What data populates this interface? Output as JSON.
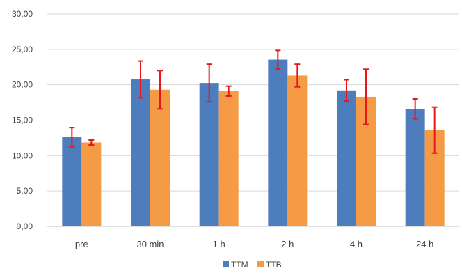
{
  "chart_data": {
    "type": "bar",
    "categories": [
      "pre",
      "30 min",
      "1 h",
      "2 h",
      "4 h",
      "24 h"
    ],
    "series": [
      {
        "name": "TTM",
        "color": "#4E7DBE",
        "values": [
          12.6,
          20.75,
          20.25,
          23.55,
          19.2,
          16.6
        ],
        "errors": [
          1.35,
          2.6,
          2.65,
          1.3,
          1.5,
          1.4
        ]
      },
      {
        "name": "TTB",
        "color": "#F59A45",
        "values": [
          11.85,
          19.3,
          19.1,
          21.3,
          18.3,
          13.6
        ],
        "errors": [
          0.35,
          2.7,
          0.7,
          1.6,
          3.9,
          3.25
        ]
      }
    ],
    "error_bar_color": "#E8161B",
    "ylim": [
      0,
      30
    ],
    "ytick_labels": [
      "0,00",
      "5,00",
      "10,00",
      "15,00",
      "20,00",
      "25,00",
      "30,00"
    ],
    "grid": true,
    "legend_position": "bottom-center",
    "title": "",
    "xlabel": "",
    "ylabel": ""
  }
}
